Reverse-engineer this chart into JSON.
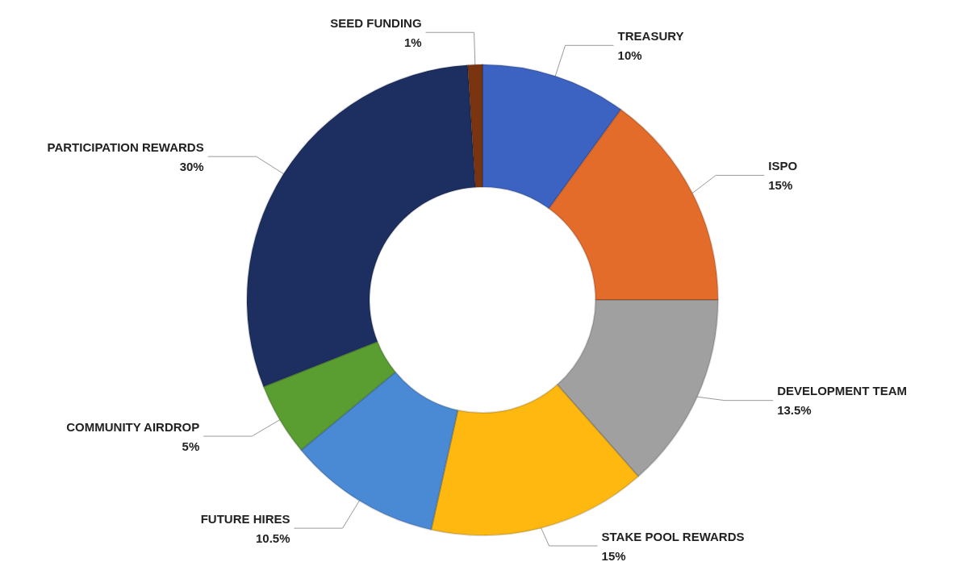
{
  "chart_data": {
    "type": "donut",
    "categories": [
      "TREASURY",
      "ISPO",
      "DEVELOPMENT TEAM",
      "STAKE POOL REWARDS",
      "FUTURE HIRES",
      "COMMUNITY AIRDROP",
      "PARTICIPATION REWARDS",
      "SEED FUNDING"
    ],
    "values": [
      10,
      15,
      13.5,
      15,
      10.5,
      5,
      30,
      1
    ],
    "value_labels": [
      "10%",
      "15%",
      "13.5%",
      "15%",
      "10.5%",
      "5%",
      "30%",
      "1%"
    ],
    "colors": [
      "#3c62c2",
      "#e46c2a",
      "#a0a0a0",
      "#ffb810",
      "#4a8ad4",
      "#5a9e32",
      "#1c2f60",
      "#7a3510"
    ],
    "legend": false
  }
}
